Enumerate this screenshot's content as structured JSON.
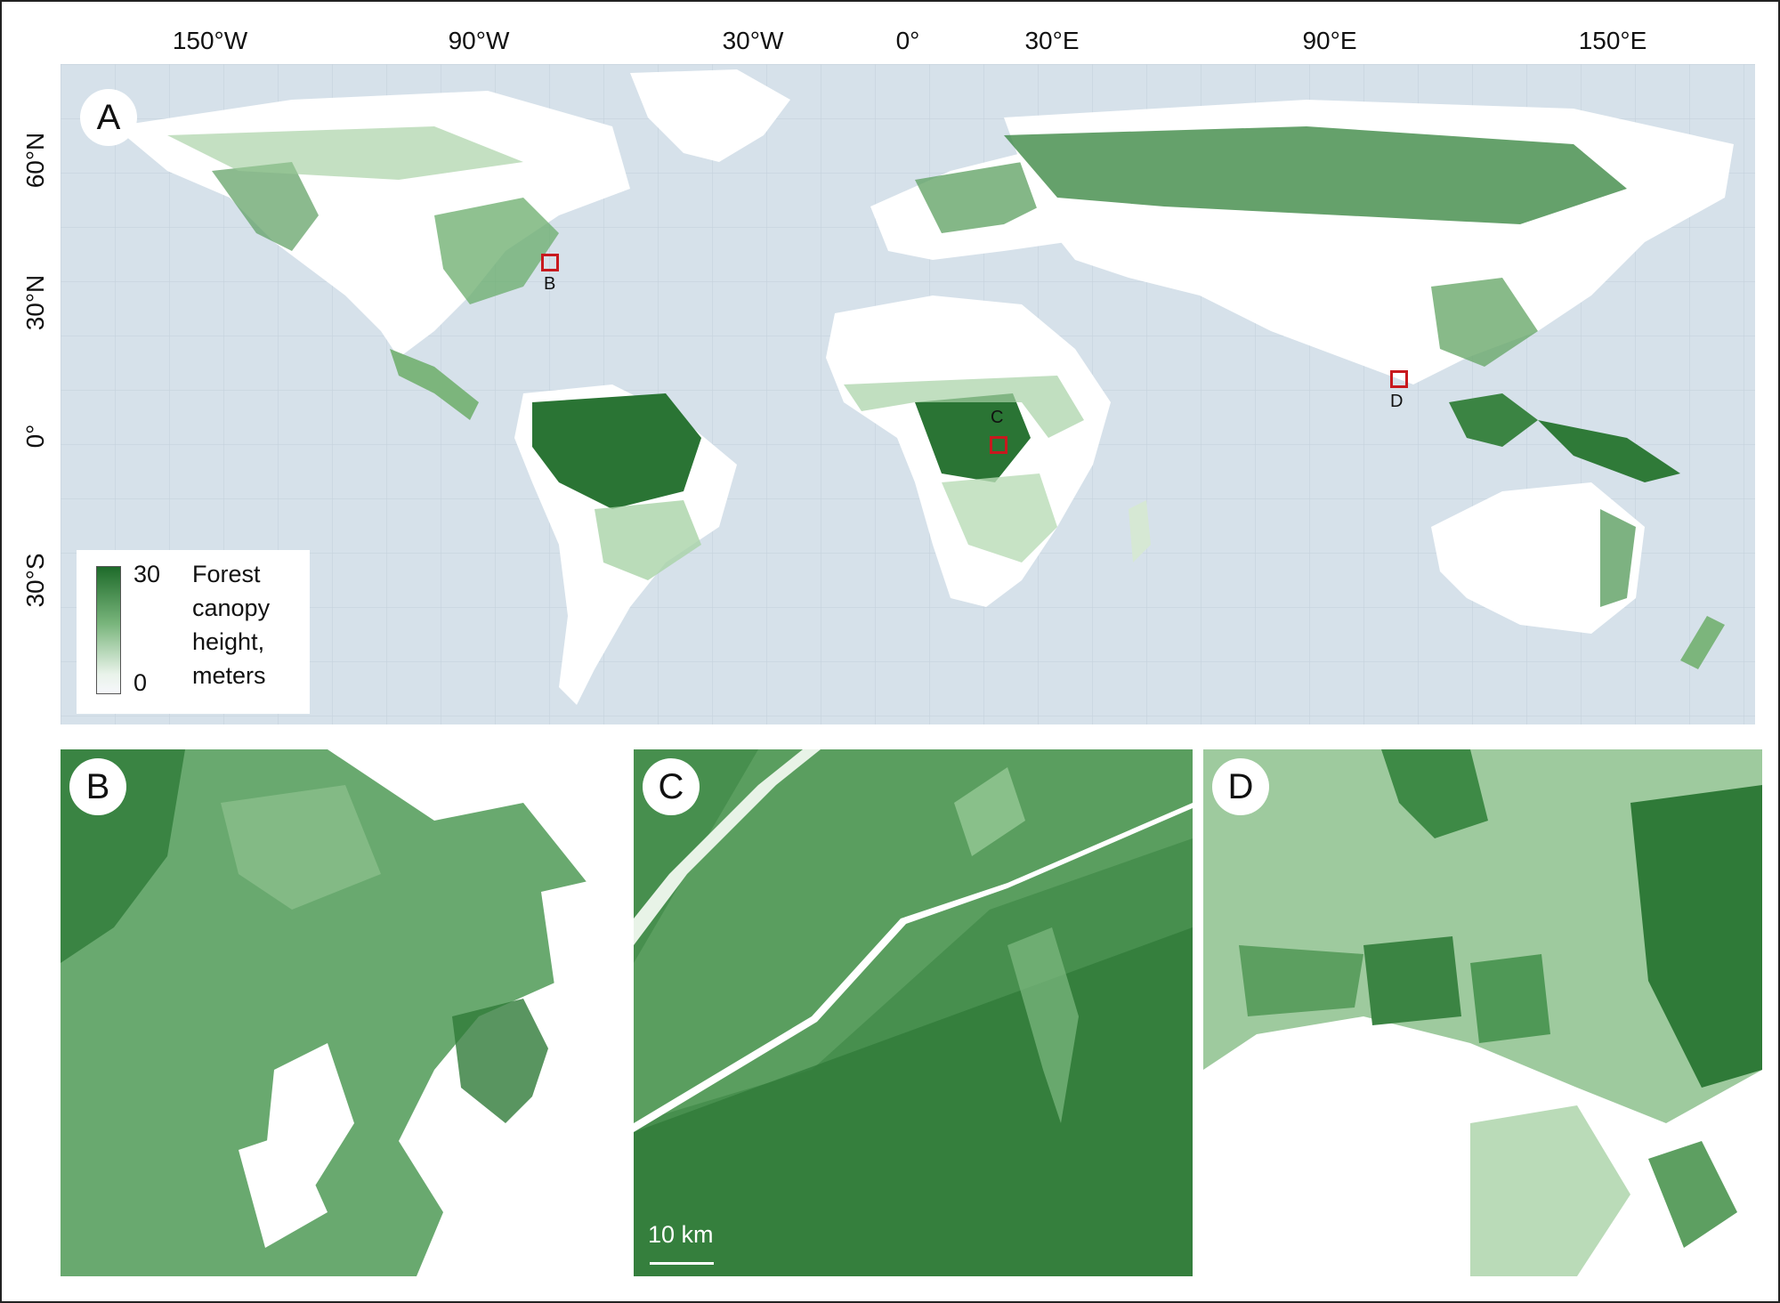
{
  "longitude_labels": [
    "150°W",
    "90°W",
    "30°W",
    "0°",
    "30°E",
    "90°E",
    "150°E"
  ],
  "latitude_labels": [
    "60°N",
    "30°N",
    "0°",
    "30°S"
  ],
  "panels": {
    "main": "A",
    "b": "B",
    "c": "C",
    "d": "D"
  },
  "inset_markers": [
    "B",
    "C",
    "D"
  ],
  "legend": {
    "max": "30",
    "min": "0",
    "title_lines": [
      "Forest",
      "canopy",
      "height,",
      "meters"
    ]
  },
  "scale_bar": "10 km",
  "colors": {
    "ocean": "#d6e1ea",
    "land": "#ffffff",
    "canopy_dark": "#1e6b2a",
    "canopy_light": "#b9dcb7",
    "marker": "#c8191e"
  }
}
